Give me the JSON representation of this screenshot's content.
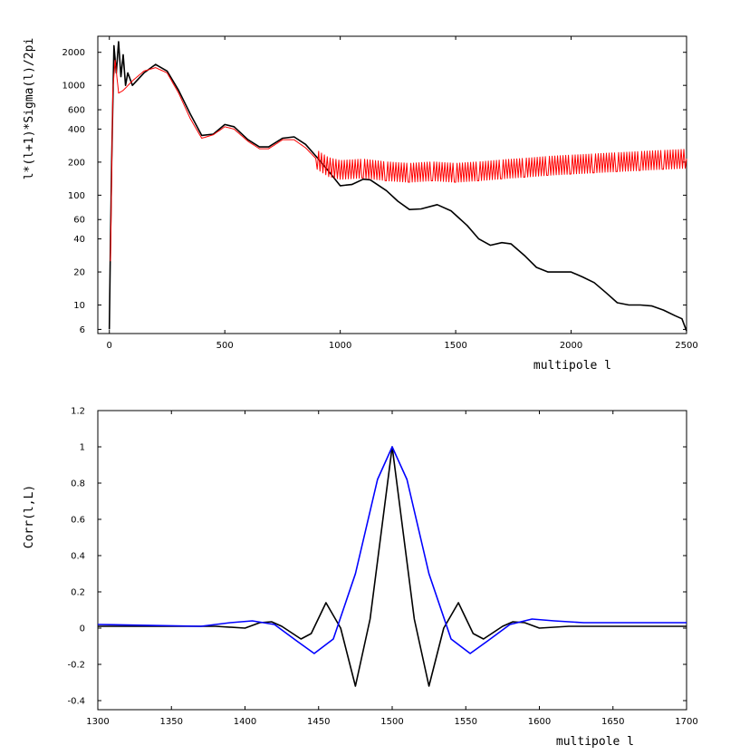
{
  "chart_data": [
    {
      "type": "line",
      "xlabel": "multipole l",
      "ylabel": "l*(l+1)*Sigma(l)/2pi",
      "yscale": "log",
      "xlim": [
        -50,
        2500
      ],
      "ylim": [
        5.5,
        2800
      ],
      "xticks": [
        0,
        500,
        1000,
        1500,
        2000,
        2500
      ],
      "yticks": [
        2000,
        1000,
        600,
        400,
        200,
        100,
        60,
        40,
        20,
        10,
        6
      ],
      "series": [
        {
          "name": "black",
          "color": "#000000",
          "x": [
            0,
            5,
            10,
            20,
            30,
            40,
            50,
            60,
            70,
            80,
            100,
            150,
            200,
            250,
            300,
            350,
            400,
            450,
            500,
            540,
            600,
            650,
            690,
            750,
            800,
            850,
            900,
            950,
            1000,
            1050,
            1100,
            1130,
            1200,
            1250,
            1300,
            1350,
            1420,
            1480,
            1550,
            1600,
            1650,
            1700,
            1740,
            1800,
            1850,
            1900,
            1950,
            2000,
            2050,
            2100,
            2150,
            2200,
            2250,
            2300,
            2350,
            2400,
            2450,
            2480,
            2500
          ],
          "y": [
            6,
            40,
            200,
            2300,
            1300,
            2500,
            1200,
            1900,
            1000,
            1300,
            1000,
            1300,
            1550,
            1350,
            900,
            550,
            350,
            360,
            440,
            420,
            320,
            275,
            275,
            330,
            340,
            290,
            220,
            165,
            122,
            125,
            140,
            138,
            110,
            88,
            74,
            75,
            82,
            72,
            53,
            40,
            35,
            37,
            36,
            28,
            22,
            20,
            20,
            20,
            18,
            16,
            13,
            10.5,
            10,
            10,
            9.8,
            9,
            8,
            7.5,
            5.8
          ]
        },
        {
          "name": "red",
          "color": "#ff0000",
          "x": [
            5,
            15,
            25,
            40,
            60,
            100,
            150,
            200,
            250,
            300,
            350,
            400,
            450,
            500,
            540,
            600,
            650,
            690,
            750,
            800,
            850,
            900,
            950,
            1000,
            1100,
            1200,
            1300,
            1400,
            1500,
            1600,
            1700,
            1800,
            1900,
            2000,
            2100,
            2200,
            2300,
            2400,
            2500
          ],
          "y": [
            25,
            900,
            1700,
            850,
            900,
            1100,
            1350,
            1450,
            1300,
            850,
            500,
            330,
            355,
            420,
            400,
            310,
            265,
            265,
            320,
            320,
            270,
            210,
            180,
            170,
            175,
            165,
            160,
            165,
            160,
            165,
            172,
            178,
            185,
            190,
            195,
            200,
            205,
            210,
            215
          ]
        }
      ]
    },
    {
      "type": "line",
      "xlabel": "multipole l",
      "ylabel": "Corr(l,L)",
      "xlim": [
        1300,
        1700
      ],
      "ylim": [
        -0.45,
        1.2
      ],
      "xticks": [
        1300,
        1350,
        1400,
        1450,
        1500,
        1550,
        1600,
        1650,
        1700
      ],
      "yticks": [
        1.2,
        1,
        0.8,
        0.6,
        0.4,
        0.2,
        0,
        -0.2,
        -0.4
      ],
      "series": [
        {
          "name": "black",
          "color": "#000000",
          "x": [
            1300,
            1380,
            1400,
            1410,
            1418,
            1425,
            1438,
            1445,
            1455,
            1465,
            1475,
            1485,
            1500,
            1515,
            1525,
            1535,
            1545,
            1555,
            1562,
            1575,
            1582,
            1590,
            1600,
            1620,
            1700
          ],
          "y": [
            0.01,
            0.01,
            0.0,
            0.03,
            0.035,
            0.01,
            -0.06,
            -0.03,
            0.14,
            0.0,
            -0.32,
            0.05,
            1.0,
            0.05,
            -0.32,
            0.0,
            0.14,
            -0.03,
            -0.06,
            0.01,
            0.035,
            0.03,
            0.0,
            0.01,
            0.01
          ]
        },
        {
          "name": "blue",
          "color": "#0000ff",
          "x": [
            1300,
            1370,
            1390,
            1405,
            1420,
            1435,
            1447,
            1460,
            1475,
            1490,
            1500,
            1510,
            1525,
            1540,
            1553,
            1565,
            1580,
            1595,
            1610,
            1630,
            1700
          ],
          "y": [
            0.02,
            0.01,
            0.03,
            0.04,
            0.02,
            -0.07,
            -0.14,
            -0.06,
            0.3,
            0.82,
            1.0,
            0.82,
            0.3,
            -0.06,
            -0.14,
            -0.07,
            0.02,
            0.05,
            0.04,
            0.03,
            0.03
          ]
        }
      ]
    }
  ]
}
